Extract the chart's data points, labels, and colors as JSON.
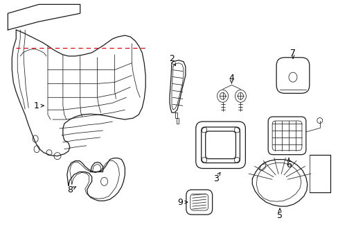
{
  "background_color": "#ffffff",
  "line_color": "#1a1a1a",
  "red_dashed_color": "#e8000a",
  "label_color": "#000000",
  "figsize": [
    4.89,
    3.6
  ],
  "dpi": 100
}
